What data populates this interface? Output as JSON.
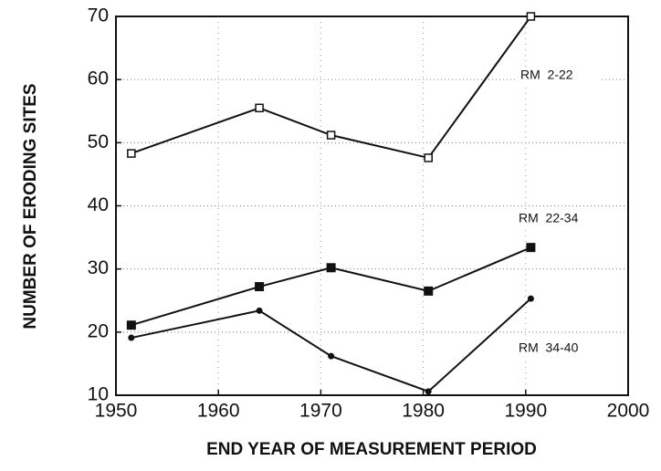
{
  "chart_data": {
    "type": "line",
    "xlabel": "END YEAR OF MEASUREMENT PERIOD",
    "ylabel": "NUMBER OF ERODING SITES",
    "x": [
      1951.5,
      1964,
      1971,
      1980.5,
      1990.5
    ],
    "series": [
      {
        "name": "RM  2-22",
        "color": "#111111",
        "marker": "open-square",
        "values": [
          48.3,
          55.5,
          51.2,
          47.6,
          70
        ]
      },
      {
        "name": "RM  22-34",
        "color": "#111111",
        "marker": "filled-square",
        "values": [
          21.1,
          27.2,
          30.2,
          26.5,
          33.4
        ]
      },
      {
        "name": "RM  34-40",
        "color": "#111111",
        "marker": "dot",
        "values": [
          19.1,
          23.4,
          16.2,
          10.6,
          25.3
        ]
      }
    ],
    "xlim": [
      1950,
      2000
    ],
    "xticks": [
      1950,
      1960,
      1970,
      1980,
      1990,
      2000
    ],
    "ylim": [
      10,
      70
    ],
    "yticks": [
      10,
      20,
      30,
      40,
      50,
      60,
      70
    ],
    "grid": true
  }
}
